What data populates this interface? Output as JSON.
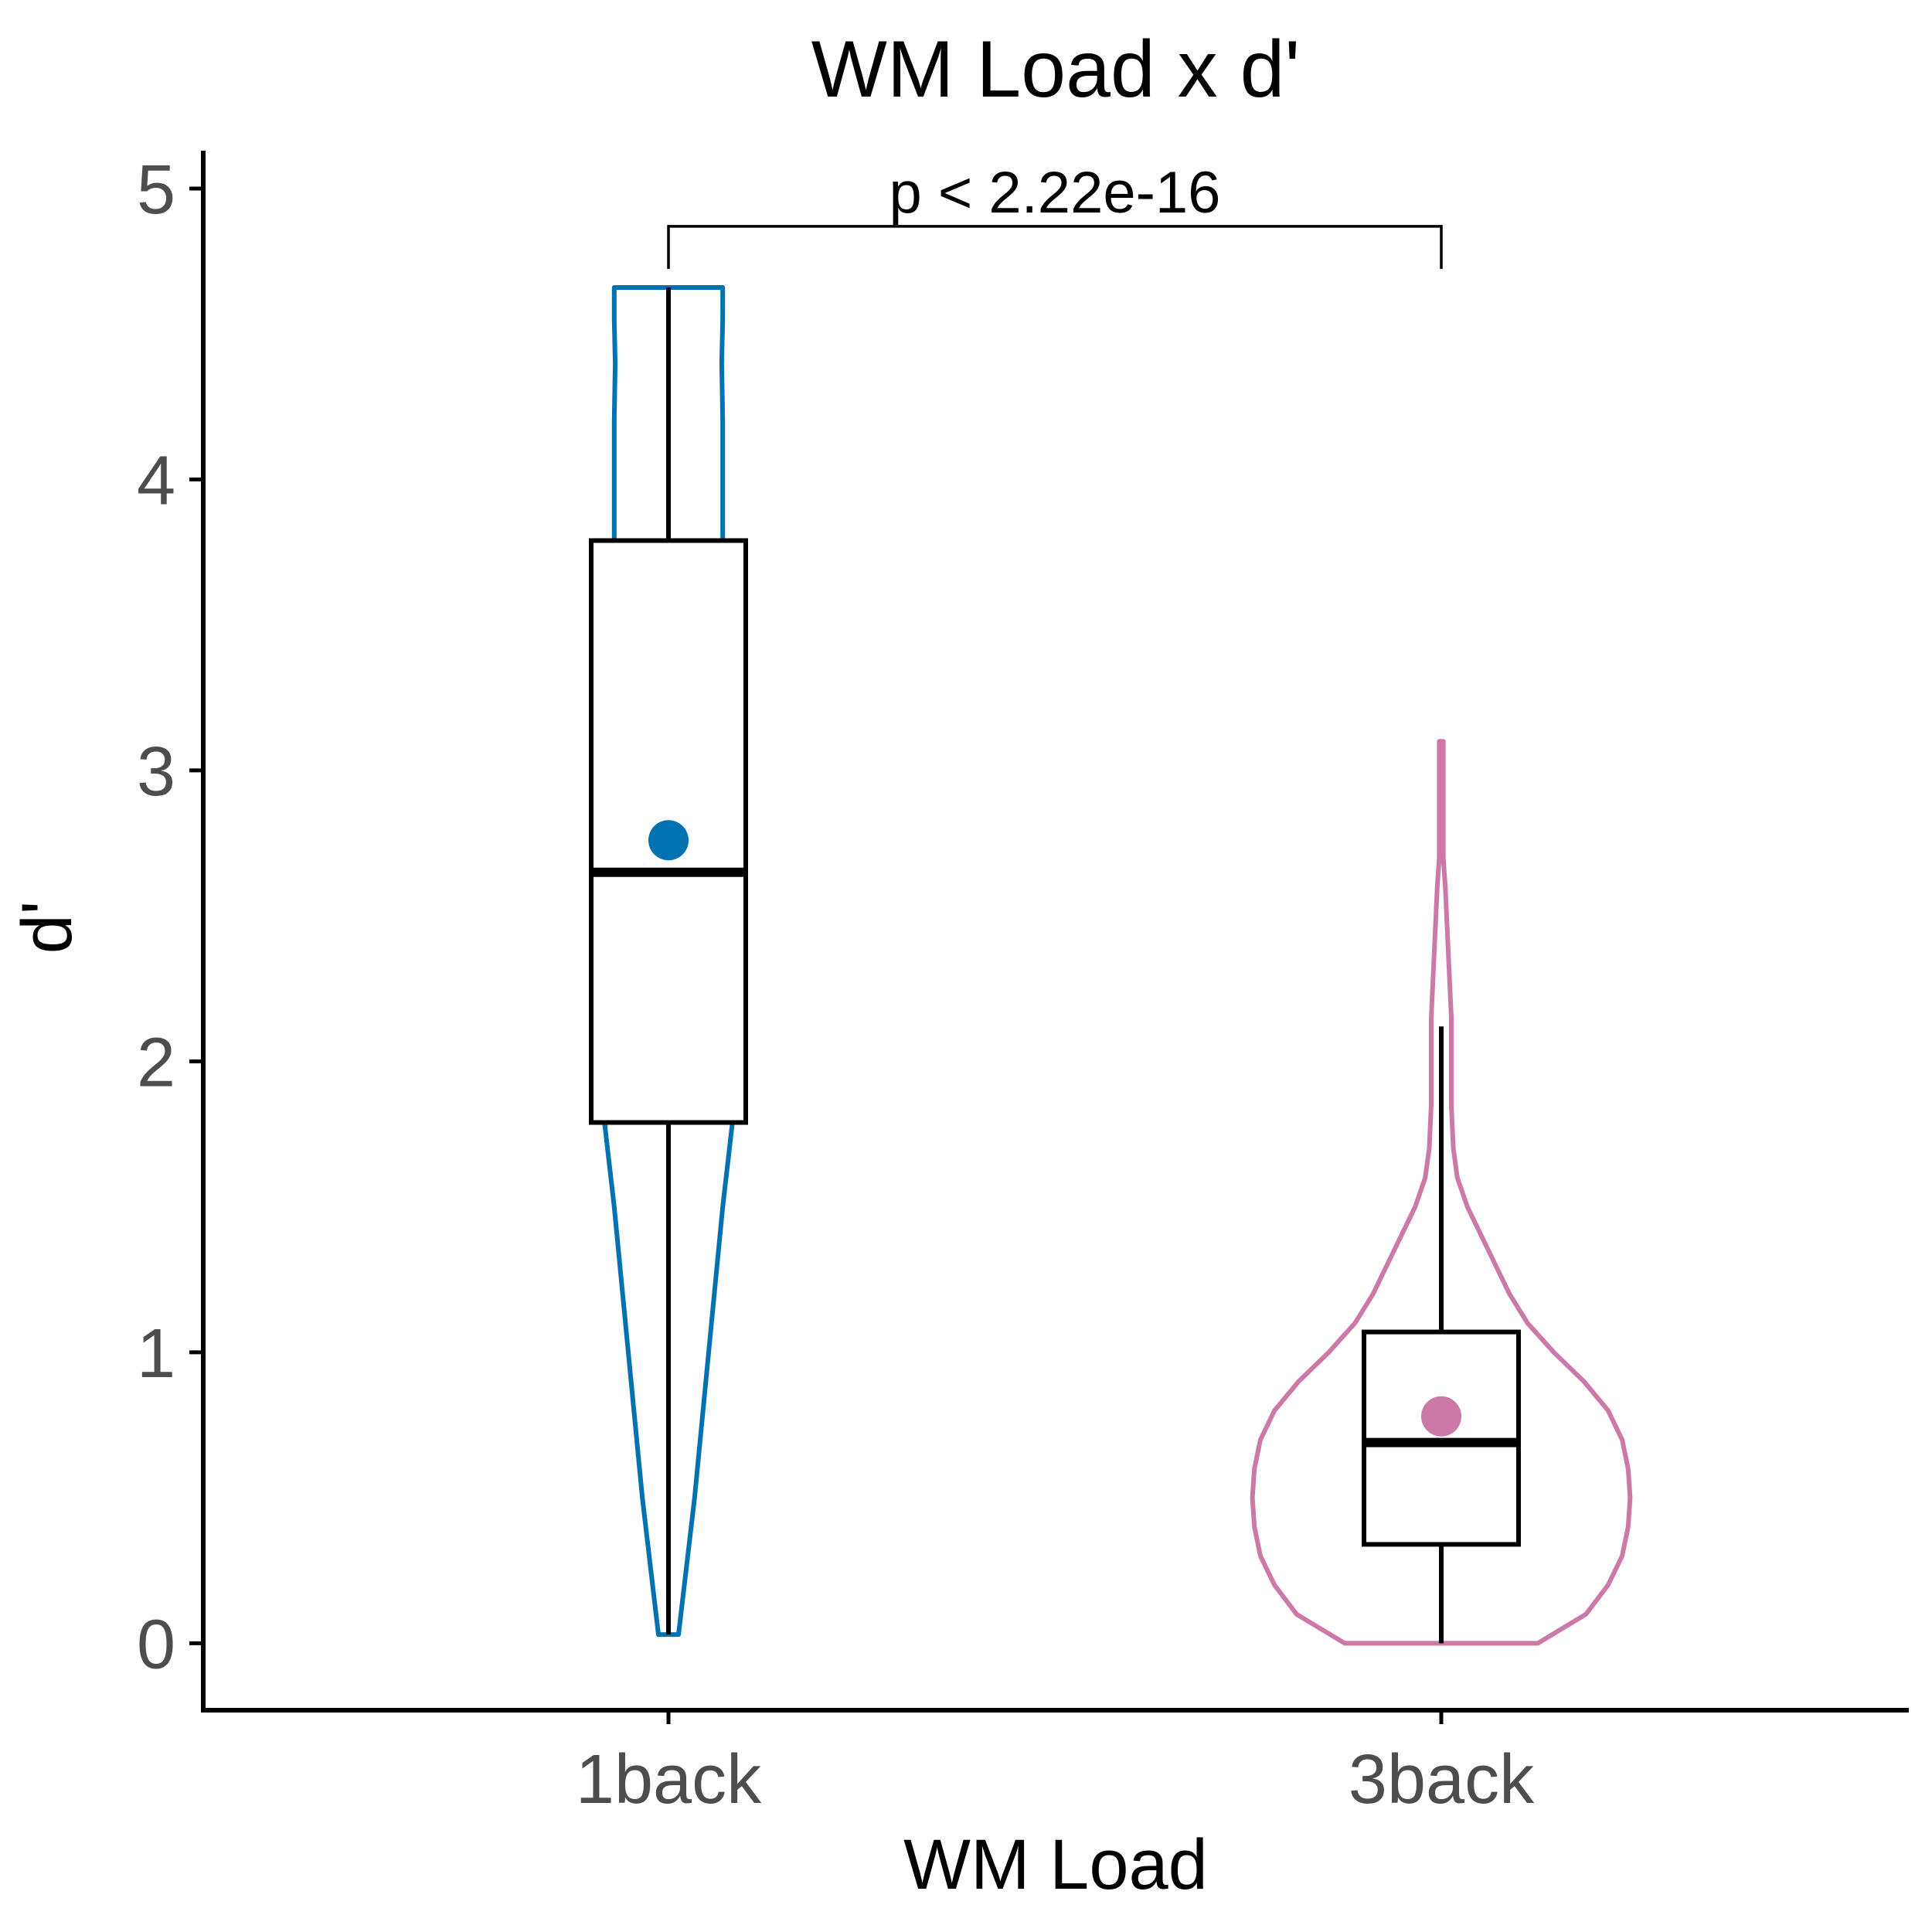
{
  "chart_data": {
    "type": "violin",
    "title": "WM Load x d'",
    "xlabel": "WM Load",
    "ylabel": "d'",
    "categories": [
      "1back",
      "3back"
    ],
    "ylim": [
      -0.23,
      5.13
    ],
    "yticks": [
      0,
      1,
      2,
      3,
      4,
      5
    ],
    "grid": false,
    "legend": "none",
    "groups": [
      {
        "category": "1back",
        "color": "#0072b2",
        "box": {
          "whisker_low": 0.03,
          "q1": 1.79,
          "median": 2.65,
          "q3": 3.79,
          "whisker_high": 4.66
        },
        "mean": 2.76,
        "violin": [
          [
            0.03,
            0.05
          ],
          [
            0.5,
            0.13
          ],
          [
            1.0,
            0.2
          ],
          [
            1.5,
            0.27
          ],
          [
            1.8,
            0.32
          ],
          [
            2.0,
            0.34
          ],
          [
            2.2,
            0.36
          ],
          [
            2.4,
            0.36
          ],
          [
            2.6,
            0.355
          ],
          [
            2.8,
            0.34
          ],
          [
            3.0,
            0.325
          ],
          [
            3.2,
            0.31
          ],
          [
            3.4,
            0.29
          ],
          [
            3.6,
            0.28
          ],
          [
            3.8,
            0.27
          ],
          [
            4.0,
            0.27
          ],
          [
            4.2,
            0.27
          ],
          [
            4.4,
            0.265
          ],
          [
            4.55,
            0.27
          ],
          [
            4.66,
            0.27
          ]
        ]
      },
      {
        "category": "3back",
        "color": "#cc79a7",
        "box": {
          "whisker_low": 0.0,
          "q1": 0.34,
          "median": 0.69,
          "q3": 1.07,
          "whisker_high": 2.12
        },
        "mean": 0.78,
        "violin": [
          [
            0.0,
            0.48
          ],
          [
            0.1,
            0.72
          ],
          [
            0.2,
            0.83
          ],
          [
            0.3,
            0.9
          ],
          [
            0.4,
            0.93
          ],
          [
            0.5,
            0.94
          ],
          [
            0.6,
            0.93
          ],
          [
            0.7,
            0.9
          ],
          [
            0.8,
            0.83
          ],
          [
            0.9,
            0.71
          ],
          [
            1.0,
            0.56
          ],
          [
            1.1,
            0.43
          ],
          [
            1.2,
            0.34
          ],
          [
            1.3,
            0.27
          ],
          [
            1.4,
            0.2
          ],
          [
            1.5,
            0.13
          ],
          [
            1.6,
            0.08
          ],
          [
            1.7,
            0.06
          ],
          [
            1.85,
            0.05
          ],
          [
            2.0,
            0.05
          ],
          [
            2.15,
            0.05
          ],
          [
            2.3,
            0.04
          ],
          [
            2.45,
            0.03
          ],
          [
            2.6,
            0.02
          ],
          [
            2.7,
            0.01
          ],
          [
            2.8,
            0.01
          ],
          [
            3.0,
            0.01
          ],
          [
            3.1,
            0.01
          ]
        ]
      }
    ],
    "comparison": {
      "from": "1back",
      "to": "3back",
      "label": "p < 2.22e-16",
      "y": 4.87
    }
  }
}
